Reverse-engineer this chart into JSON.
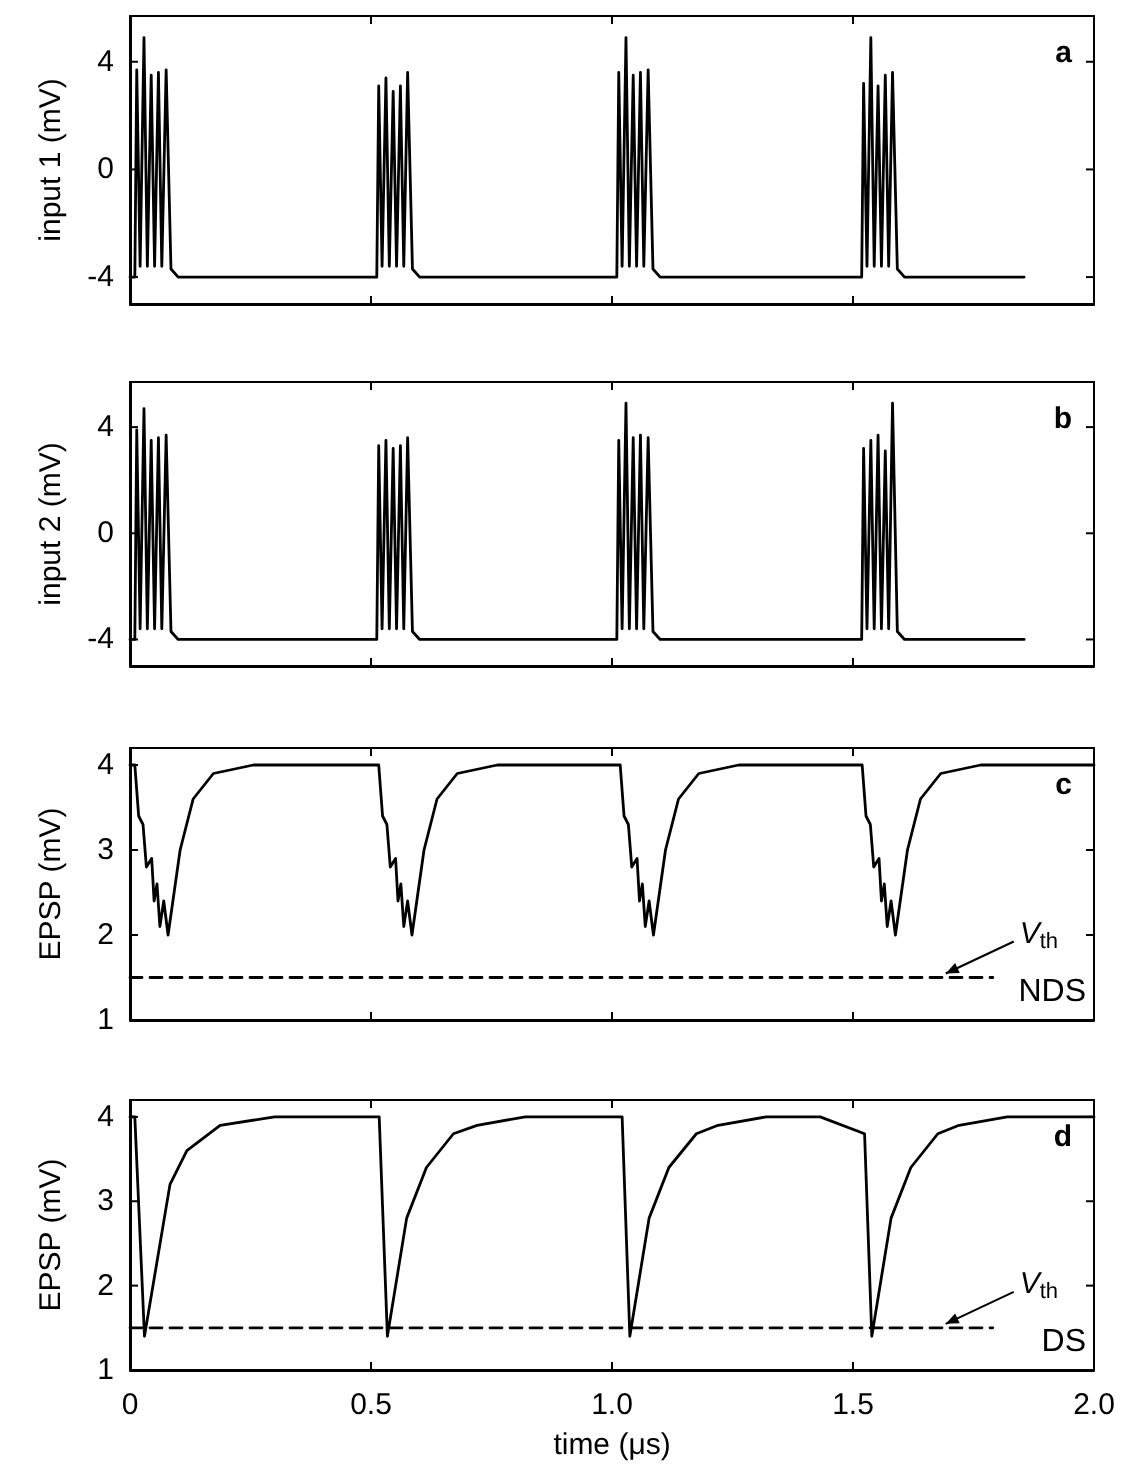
{
  "chart_data": [
    {
      "type": "line",
      "title": "a",
      "ylabel": "input 1 (mV)",
      "xlim": [
        0,
        2
      ],
      "xticks": [
        0,
        0.5,
        1,
        1.5,
        2
      ],
      "ylim": [
        -5,
        5.7
      ],
      "yticks": [
        -4,
        0,
        4
      ],
      "tick_labels": "y",
      "grid": false,
      "marker": "none",
      "series": [
        {
          "color": "#000000",
          "x": [
            0,
            0.01,
            0.014,
            0.021,
            0.029,
            0.036,
            0.044,
            0.051,
            0.059,
            0.066,
            0.075,
            0.085,
            0.1,
            0.512,
            0.516,
            0.523,
            0.531,
            0.538,
            0.546,
            0.553,
            0.561,
            0.568,
            0.576,
            0.586,
            0.601,
            1.01,
            1.014,
            1.021,
            1.029,
            1.036,
            1.044,
            1.051,
            1.059,
            1.066,
            1.075,
            1.085,
            1.1,
            1.518,
            1.522,
            1.529,
            1.537,
            1.544,
            1.552,
            1.559,
            1.567,
            1.574,
            1.582,
            1.592,
            1.607,
            1.855
          ],
          "values": [
            -4,
            -4,
            3.7,
            -3.6,
            4.9,
            -3.6,
            3.5,
            -3.6,
            3.6,
            -3.6,
            3.7,
            -3.7,
            -4,
            -4,
            3.1,
            -3.6,
            3.4,
            -3.6,
            2.9,
            -3.6,
            3.1,
            -3.6,
            3.6,
            -3.7,
            -4,
            -4,
            3.6,
            -3.6,
            4.9,
            -3.6,
            3.5,
            -3.6,
            3.6,
            -3.6,
            3.7,
            -3.7,
            -4,
            -4,
            3.2,
            -3.6,
            4.9,
            -3.6,
            3.1,
            -3.6,
            3.5,
            -3.6,
            3.6,
            -3.7,
            -4,
            -4
          ]
        }
      ]
    },
    {
      "type": "line",
      "title": "b",
      "ylabel": "input 2 (mV)",
      "xlim": [
        0,
        2
      ],
      "xticks": [
        0,
        0.5,
        1,
        1.5,
        2
      ],
      "ylim": [
        -5,
        5.7
      ],
      "yticks": [
        -4,
        0,
        4
      ],
      "tick_labels": "y",
      "grid": false,
      "marker": "none",
      "series": [
        {
          "color": "#000000",
          "x": [
            0,
            0.01,
            0.014,
            0.021,
            0.029,
            0.036,
            0.044,
            0.051,
            0.059,
            0.066,
            0.075,
            0.085,
            0.1,
            0.512,
            0.516,
            0.523,
            0.531,
            0.538,
            0.546,
            0.553,
            0.561,
            0.568,
            0.576,
            0.586,
            0.601,
            1.01,
            1.014,
            1.021,
            1.029,
            1.036,
            1.044,
            1.051,
            1.059,
            1.066,
            1.075,
            1.085,
            1.1,
            1.518,
            1.522,
            1.529,
            1.537,
            1.544,
            1.552,
            1.559,
            1.567,
            1.574,
            1.582,
            1.592,
            1.607,
            1.855
          ],
          "values": [
            -4,
            -4,
            3.9,
            -3.6,
            4.7,
            -3.6,
            3.5,
            -3.6,
            3.6,
            -3.6,
            3.7,
            -3.7,
            -4,
            -4,
            3.3,
            -3.6,
            3.5,
            -3.6,
            3.2,
            -3.6,
            3.3,
            -3.6,
            3.6,
            -3.7,
            -4,
            -4,
            3.5,
            -3.6,
            4.9,
            -3.6,
            3.6,
            -3.6,
            3.7,
            -3.6,
            3.6,
            -3.7,
            -4,
            -4,
            3.2,
            -3.6,
            3.5,
            -3.6,
            3.7,
            -3.6,
            3.1,
            -3.6,
            4.9,
            -3.7,
            -4,
            -4
          ]
        }
      ]
    },
    {
      "type": "line",
      "title": "c",
      "ylabel": "EPSP (mV)",
      "xlim": [
        0,
        2
      ],
      "xticks": [
        0,
        0.5,
        1,
        1.5,
        2
      ],
      "ylim": [
        1,
        4.2
      ],
      "yticks": [
        1,
        2,
        3,
        4
      ],
      "tick_labels": "y",
      "grid": false,
      "marker": "none",
      "annotations": [
        {
          "text": "V$_{th}$",
          "x": 1.68,
          "y": 1.5
        },
        "NDS"
      ],
      "series": [
        {
          "color": "#000000",
          "line_style": "solid",
          "x": [
            0,
            0.01,
            0.018,
            0.027,
            0.034,
            0.045,
            0.05,
            0.056,
            0.062,
            0.07,
            0.079,
            0.104,
            0.131,
            0.173,
            0.256,
            0.39,
            0.516,
            0.524,
            0.533,
            0.54,
            0.551,
            0.556,
            0.562,
            0.568,
            0.576,
            0.585,
            0.61,
            0.637,
            0.679,
            0.762,
            0.896,
            1.017,
            1.025,
            1.034,
            1.041,
            1.052,
            1.057,
            1.063,
            1.069,
            1.077,
            1.086,
            1.111,
            1.138,
            1.18,
            1.263,
            1.397,
            1.519,
            1.527,
            1.536,
            1.543,
            1.554,
            1.559,
            1.565,
            1.571,
            1.579,
            1.588,
            1.613,
            1.64,
            1.682,
            1.765,
            1.899,
            2.0
          ],
          "values": [
            4,
            4,
            3.4,
            3.3,
            2.8,
            2.9,
            2.4,
            2.6,
            2.1,
            2.4,
            2.0,
            3.0,
            3.6,
            3.9,
            4.0,
            4.0,
            4,
            3.4,
            3.3,
            2.8,
            2.9,
            2.4,
            2.6,
            2.1,
            2.4,
            2.0,
            3.0,
            3.6,
            3.9,
            4.0,
            4.0,
            4,
            3.4,
            3.3,
            2.8,
            2.9,
            2.4,
            2.6,
            2.1,
            2.4,
            2.0,
            3.0,
            3.6,
            3.9,
            4.0,
            4.0,
            4,
            3.4,
            3.3,
            2.8,
            2.9,
            2.4,
            2.6,
            2.1,
            2.4,
            2.0,
            3.0,
            3.6,
            3.9,
            4.0,
            4.0,
            4.0
          ]
        },
        {
          "color": "#000000",
          "line_style": "dashed",
          "x": [
            0,
            1.79
          ],
          "values": [
            1.5,
            1.5
          ]
        }
      ]
    },
    {
      "type": "line",
      "title": "d",
      "xlabel": "time (μs)",
      "ylabel": "EPSP (mV)",
      "xlim": [
        0,
        2
      ],
      "xticks": [
        0,
        0.5,
        {
          "value": 1,
          "label": "1.0"
        },
        1.5,
        {
          "value": 2,
          "label": "2.0"
        }
      ],
      "ylim": [
        1,
        4.2
      ],
      "yticks": [
        1,
        2,
        3,
        4
      ],
      "grid": false,
      "marker": "none",
      "annotations": [
        {
          "text": "V$_{th}$",
          "x": 1.68,
          "y": 1.5
        },
        "DS"
      ],
      "series": [
        {
          "color": "#000000",
          "line_style": "solid",
          "x": [
            0,
            0.01,
            0.03,
            0.083,
            0.118,
            0.187,
            0.3,
            0.517,
            0.534,
            0.574,
            0.615,
            0.671,
            0.72,
            0.82,
            1.021,
            1.037,
            1.077,
            1.118,
            1.175,
            1.22,
            1.32,
            1.432,
            1.524,
            1.539,
            1.579,
            1.62,
            1.676,
            1.72,
            1.82,
            2.0
          ],
          "values": [
            4.0,
            4.0,
            1.4,
            3.2,
            3.6,
            3.9,
            4.0,
            4.0,
            1.4,
            2.8,
            3.4,
            3.8,
            3.9,
            4.0,
            4.0,
            1.4,
            2.8,
            3.4,
            3.8,
            3.9,
            4.0,
            4.0,
            3.8,
            1.4,
            2.8,
            3.4,
            3.8,
            3.9,
            4.0,
            4.0
          ]
        },
        {
          "color": "#000000",
          "line_style": "dashed",
          "x": [
            0,
            1.79
          ],
          "values": [
            1.5,
            1.5
          ]
        }
      ]
    }
  ]
}
